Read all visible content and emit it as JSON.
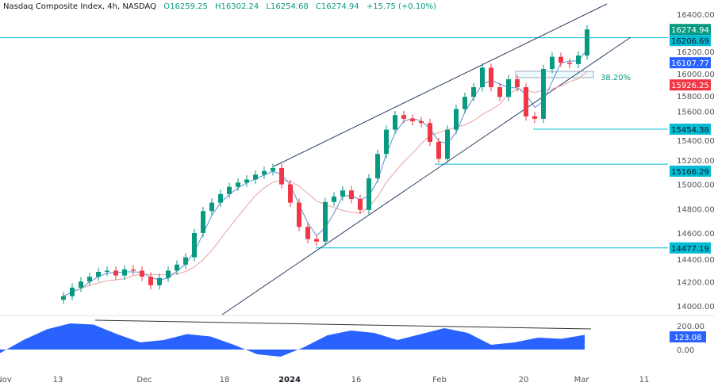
{
  "header": {
    "title": "Nasdaq Composite Index, 4h, NASDAQ",
    "open": "O16259.25",
    "high": "H16302.24",
    "low": "L16254.68",
    "close": "C16274.94",
    "change": "+15.75 (+0.10%)"
  },
  "chart_data": [
    {
      "type": "candlestick",
      "ylim": [
        13900,
        16500
      ],
      "price_ticks": [
        "16400.00",
        "16200.00",
        "16000.00",
        "15800.00",
        "15600.00",
        "15400.00",
        "15200.00",
        "15000.00",
        "14800.00",
        "14600.00",
        "14400.00",
        "14200.00",
        "14000.00"
      ],
      "time_ticks": [
        "Nov",
        "13",
        "Dec",
        "18",
        "2024",
        "16",
        "Feb",
        "20",
        "Mar",
        "11"
      ],
      "open_first": 14050,
      "closes": [
        14080,
        14150,
        14200,
        14240,
        14280,
        14290,
        14250,
        14300,
        14290,
        14240,
        14170,
        14230,
        14290,
        14340,
        14400,
        14600,
        14780,
        14850,
        14920,
        14980,
        15015,
        15040,
        15080,
        15110,
        15135,
        15000,
        14850,
        14650,
        14550,
        14530,
        14855,
        14900,
        14950,
        14880,
        14790,
        15050,
        15250,
        15450,
        15570,
        15540,
        15520,
        15505,
        15350,
        15210,
        15450,
        15620,
        15720,
        15800,
        15960,
        15800,
        15720,
        15865,
        15800,
        15560,
        15540,
        15950,
        16050,
        16000,
        15990,
        16060,
        16275
      ],
      "price_labels": [
        {
          "text": "16274.94",
          "value": 16274.94,
          "color": "#089981"
        },
        {
          "text": "16206.69",
          "value": 16206.69,
          "color": "#00bcd4"
        },
        {
          "text": "16107.77",
          "value": 16107.77,
          "color": "#2962ff"
        },
        {
          "text": "15926.25",
          "value": 15926.25,
          "color": "#f23645"
        },
        {
          "text": "15454.38",
          "value": 15454.38,
          "color": "#00bcd4"
        },
        {
          "text": "15166.29",
          "value": 15166.29,
          "color": "#00bcd4"
        },
        {
          "text": "14477.19",
          "value": 14477.19,
          "color": "#00bcd4"
        }
      ],
      "fib_label": "38.20%",
      "colors": {
        "up": "#089981",
        "down": "#f23645",
        "fast_ma": "#5b8fd6",
        "slow_ma": "#e8a0a0",
        "levels": "#00bcd4",
        "channel": "#2a3d66"
      }
    },
    {
      "type": "area",
      "ylim": [
        -40,
        260
      ],
      "ticks": [
        "200.00",
        "0.00"
      ],
      "current": "123.08",
      "values": [
        -30,
        80,
        170,
        220,
        210,
        130,
        60,
        80,
        130,
        110,
        40,
        -40,
        -60,
        20,
        120,
        160,
        140,
        80,
        130,
        180,
        140,
        40,
        60,
        100,
        90,
        123
      ],
      "color": "#2962ff"
    }
  ]
}
